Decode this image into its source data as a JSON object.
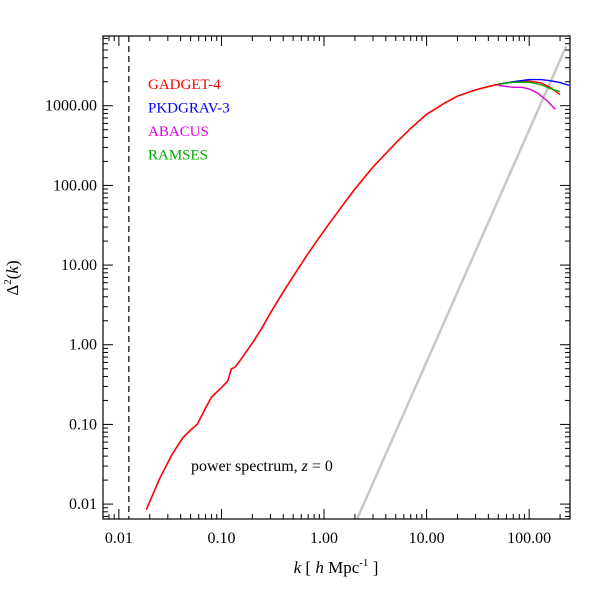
{
  "chart_data": {
    "type": "line",
    "xscale": "log",
    "yscale": "log",
    "xlim": [
      0.007,
      250
    ],
    "ylim": [
      0.0065,
      7500
    ],
    "grid": false,
    "legend_placement": "top-left",
    "xlabel_parts": {
      "var": "k",
      "open": " [ ",
      "h": "h",
      "unit": " Mpc",
      "exp": "-1",
      "close": " ]"
    },
    "ylabel_parts": {
      "delta": "Δ",
      "sup": "2",
      "open": "(",
      "var": "k",
      "close": ")"
    },
    "annotation_parts": {
      "text": "power spectrum, ",
      "var": "z",
      "eq": " = 0"
    },
    "x_ticks": [
      {
        "value": 0.01,
        "label": "0.01"
      },
      {
        "value": 0.1,
        "label": "0.10"
      },
      {
        "value": 1,
        "label": "1.00"
      },
      {
        "value": 10,
        "label": "10.00"
      },
      {
        "value": 100,
        "label": "100.00"
      }
    ],
    "y_ticks": [
      {
        "value": 0.01,
        "label": "0.01"
      },
      {
        "value": 0.1,
        "label": "0.10"
      },
      {
        "value": 1,
        "label": "1.00"
      },
      {
        "value": 10,
        "label": "10.00"
      },
      {
        "value": 100,
        "label": "100.00"
      },
      {
        "value": 1000,
        "label": "1000.00"
      }
    ],
    "vline": {
      "x": 0.0125,
      "style": "dashed",
      "color": "#000000"
    },
    "reference_line": {
      "color": "#c8c8c8",
      "points": [
        [
          2.1,
          0.0065
        ],
        [
          230,
          5600
        ]
      ]
    },
    "common_curve": {
      "x": [
        0.0185,
        0.025,
        0.033,
        0.042,
        0.05,
        0.058,
        0.07,
        0.08,
        0.1,
        0.115,
        0.125,
        0.135,
        0.15,
        0.17,
        0.2,
        0.25,
        0.3,
        0.4,
        0.5,
        0.7,
        1.0,
        1.5,
        2,
        3,
        5,
        7,
        10,
        15,
        20,
        30,
        40,
        50
      ],
      "y": [
        0.0085,
        0.021,
        0.042,
        0.068,
        0.085,
        0.1,
        0.16,
        0.22,
        0.29,
        0.35,
        0.5,
        0.52,
        0.62,
        0.78,
        1.05,
        1.65,
        2.5,
        4.6,
        7.2,
        14,
        27,
        55,
        90,
        170,
        340,
        520,
        780,
        1080,
        1320,
        1580,
        1740,
        1860
      ]
    },
    "series": [
      {
        "name": "GADGET-4",
        "color": "#ff0000",
        "x": [
          50,
          70,
          100,
          130,
          160,
          200
        ],
        "y": [
          1860,
          1990,
          2040,
          1940,
          1700,
          1380
        ]
      },
      {
        "name": "PKDGRAV-3",
        "color": "#0000ff",
        "x": [
          50,
          70,
          100,
          130,
          160,
          200,
          245
        ],
        "y": [
          1860,
          2000,
          2130,
          2130,
          2060,
          1950,
          1800
        ]
      },
      {
        "name": "ABACUS",
        "color": "#dd00dd",
        "x": [
          50,
          70,
          85,
          100,
          120,
          150,
          180
        ],
        "y": [
          1800,
          1700,
          1700,
          1620,
          1450,
          1150,
          900
        ]
      },
      {
        "name": "RAMSES",
        "color": "#00aa00",
        "x": [
          50,
          70,
          100,
          130,
          160,
          200
        ],
        "y": [
          1860,
          1970,
          1970,
          1840,
          1640,
          1500
        ]
      }
    ]
  }
}
